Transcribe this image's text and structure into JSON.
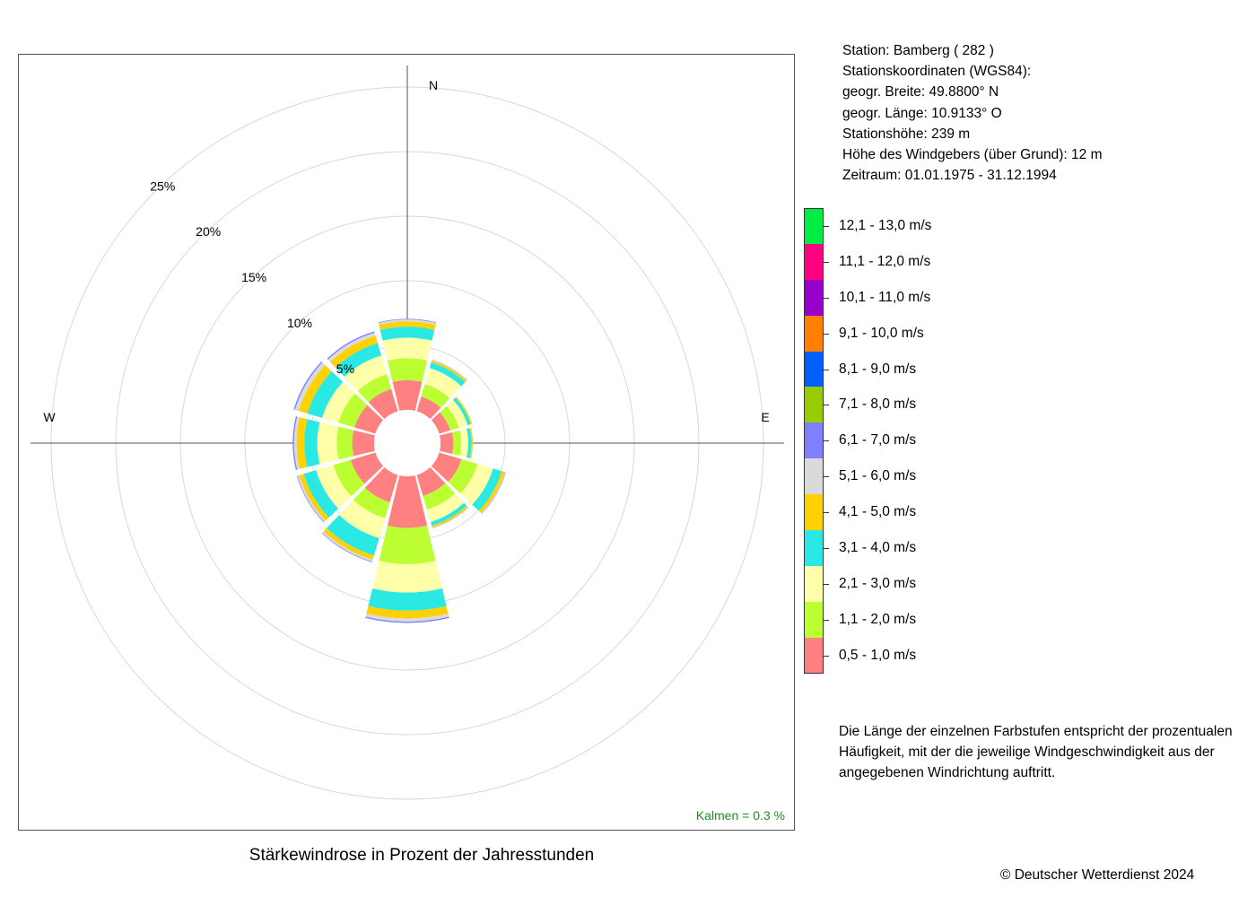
{
  "title": "Stärkewindrose in Prozent der Jahresstunden",
  "copyright": "© Deutscher Wetterdienst  2024",
  "station_info": [
    "Station:  Bamberg  ( 282 )",
    "Stationskoordinaten (WGS84):",
    "geogr. Breite: 49.8800° N",
    "geogr. Länge: 10.9133° O",
    "Stationshöhe: 239 m",
    "Höhe des Windgebers (über Grund): 12 m",
    "Zeitraum: 01.01.1975 - 31.12.1994"
  ],
  "note_lines": [
    "Die Länge der einzelnen Farbstufen entspricht der prozentualen",
    "Häufigkeit, mit der die jeweilige Windgeschwindigkeit aus der",
    "angegebenen Windrichtung auftritt."
  ],
  "calm_text": "Kalmen  =  0.3 %",
  "calm_color": "#228B22",
  "chart_data": {
    "type": "polar-stacked-bar",
    "title": "Stärkewindrose in Prozent der Jahresstunden",
    "directions": [
      {
        "deg": 0,
        "label": "N"
      },
      {
        "deg": 90,
        "label": "E"
      },
      {
        "deg": 270,
        "label": "W"
      }
    ],
    "radial_ticks": [
      5,
      10,
      15,
      20,
      25
    ],
    "radial_tick_labels": [
      "5%",
      "10%",
      "15%",
      "20%",
      "25%"
    ],
    "radial_max": 25,
    "speed_classes": [
      {
        "label": "0,5 - 1,0 m/s",
        "color": "#FF8080"
      },
      {
        "label": "1,1 - 2,0 m/s",
        "color": "#BBFF33"
      },
      {
        "label": "2,1 - 3,0 m/s",
        "color": "#FFFFAA"
      },
      {
        "label": "3,1 - 4,0 m/s",
        "color": "#2AE8E4"
      },
      {
        "label": "4,1 - 5,0 m/s",
        "color": "#FFD100"
      },
      {
        "label": "5,1 - 6,0 m/s",
        "color": "#DADADA"
      },
      {
        "label": "6,1 - 7,0 m/s",
        "color": "#8080FF"
      },
      {
        "label": "7,1 - 8,0 m/s",
        "color": "#99CC00"
      },
      {
        "label": "8,1 - 9,0 m/s",
        "color": "#005FFF"
      },
      {
        "label": "9,1 - 10,0 m/s",
        "color": "#FF8000"
      },
      {
        "label": "10,1 - 11,0 m/s",
        "color": "#9900CC"
      },
      {
        "label": "11,1 - 12,0 m/s",
        "color": "#FF0080"
      },
      {
        "label": "12,1 - 13,0 m/s",
        "color": "#00EE44"
      }
    ],
    "sectors": [
      {
        "deg": 0,
        "values": [
          2.3,
          1.7,
          1.6,
          0.85,
          0.4,
          0.15,
          0.05
        ]
      },
      {
        "deg": 30,
        "values": [
          1.2,
          1.0,
          1.3,
          0.45,
          0.15,
          0.05,
          0.02
        ]
      },
      {
        "deg": 60,
        "values": [
          0.9,
          0.7,
          0.7,
          0.25,
          0.1,
          0.02
        ]
      },
      {
        "deg": 90,
        "values": [
          1.0,
          0.6,
          0.55,
          0.25,
          0.1,
          0.02
        ]
      },
      {
        "deg": 120,
        "values": [
          1.8,
          1.3,
          1.25,
          0.7,
          0.25,
          0.06,
          0.03
        ]
      },
      {
        "deg": 150,
        "values": [
          1.7,
          1.1,
          1.0,
          0.3,
          0.15,
          0.03,
          0.02
        ]
      },
      {
        "deg": 180,
        "values": [
          4.0,
          2.8,
          2.2,
          1.4,
          0.6,
          0.25,
          0.1
        ]
      },
      {
        "deg": 210,
        "values": [
          2.2,
          1.3,
          1.6,
          1.4,
          0.35,
          0.15,
          0.05
        ]
      },
      {
        "deg": 240,
        "values": [
          2.0,
          1.4,
          1.4,
          1.0,
          0.35,
          0.15,
          0.05
        ]
      },
      {
        "deg": 270,
        "values": [
          1.7,
          1.2,
          1.5,
          1.0,
          0.6,
          0.2,
          0.1
        ]
      },
      {
        "deg": 300,
        "values": [
          1.7,
          1.3,
          1.3,
          1.2,
          0.7,
          0.3,
          0.1
        ]
      },
      {
        "deg": 330,
        "values": [
          1.8,
          1.2,
          1.5,
          1.0,
          0.6,
          0.25,
          0.1
        ]
      }
    ],
    "calm_percent": 0.3
  }
}
